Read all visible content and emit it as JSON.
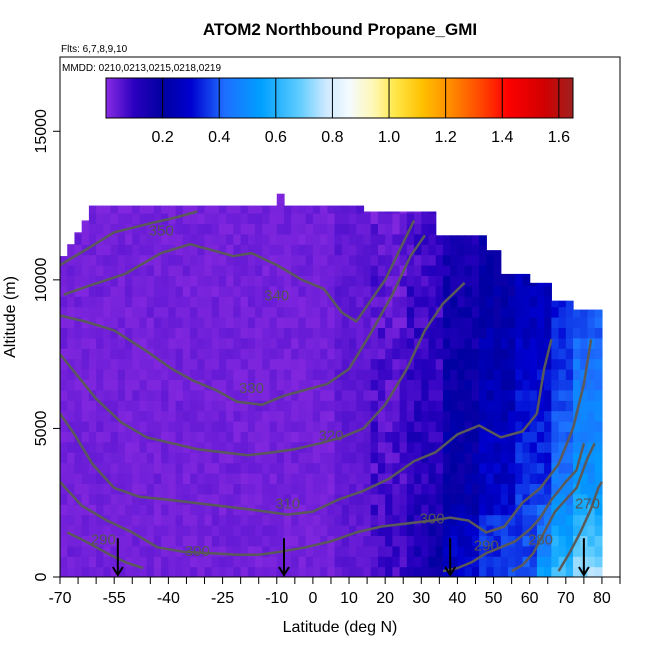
{
  "chart_data": {
    "type": "heatmap",
    "title": "ATOM2 Northbound Propane_GMI",
    "subtitle_flights": "Flts: 6,7,8,9,10",
    "subtitle_dates": "MMDD: 0210,0213,0215,0218,0219",
    "xlabel": "Latitude (deg N)",
    "ylabel": "Altitude (m)",
    "xlim": [
      -70,
      85
    ],
    "ylim": [
      0,
      17500
    ],
    "x_ticks": [
      {
        "value": -70,
        "label": "-70"
      },
      {
        "value": -55,
        "label": "-55"
      },
      {
        "value": -40,
        "label": "-40"
      },
      {
        "value": -25,
        "label": "-25"
      },
      {
        "value": -10,
        "label": "-10"
      },
      {
        "value": 0,
        "label": "0"
      },
      {
        "value": 10,
        "label": "10"
      },
      {
        "value": 20,
        "label": "20"
      },
      {
        "value": 30,
        "label": "30"
      },
      {
        "value": 40,
        "label": "40"
      },
      {
        "value": 50,
        "label": "50"
      },
      {
        "value": 60,
        "label": "60"
      },
      {
        "value": 70,
        "label": "70"
      },
      {
        "value": 80,
        "label": "80"
      }
    ],
    "x_minor_ticks": [
      -65,
      -60,
      -50,
      -45,
      -35,
      -30,
      -20,
      -15,
      -5,
      5,
      15,
      25,
      35,
      45,
      55,
      65,
      75,
      85
    ],
    "y_ticks": [
      {
        "value": 0,
        "label": "0"
      },
      {
        "value": 5000,
        "label": "5000"
      },
      {
        "value": 10000,
        "label": "10000"
      },
      {
        "value": 15000,
        "label": "15000"
      }
    ],
    "colorbar": {
      "min": 0.0,
      "max": 1.65,
      "ticks": [
        {
          "value": 0.2,
          "label": "0.2"
        },
        {
          "value": 0.4,
          "label": "0.4"
        },
        {
          "value": 0.6,
          "label": "0.6"
        },
        {
          "value": 0.8,
          "label": "0.8"
        },
        {
          "value": 1.0,
          "label": "1.0"
        },
        {
          "value": 1.2,
          "label": "1.2"
        },
        {
          "value": 1.4,
          "label": "1.4"
        },
        {
          "value": 1.6,
          "label": "1.6"
        }
      ],
      "stops": [
        {
          "value": 0.0,
          "color": "#8a2be2"
        },
        {
          "value": 0.1,
          "color": "#2a00c0"
        },
        {
          "value": 0.2,
          "color": "#0000a0"
        },
        {
          "value": 0.3,
          "color": "#0000d0"
        },
        {
          "value": 0.42,
          "color": "#1e6fff"
        },
        {
          "value": 0.55,
          "color": "#00a0ff"
        },
        {
          "value": 0.68,
          "color": "#5ccbff"
        },
        {
          "value": 0.78,
          "color": "#cfeaff"
        },
        {
          "value": 0.86,
          "color": "#f4fbff"
        },
        {
          "value": 0.95,
          "color": "#fff7b0"
        },
        {
          "value": 1.02,
          "color": "#ffe84a"
        },
        {
          "value": 1.12,
          "color": "#ffbf00"
        },
        {
          "value": 1.22,
          "color": "#ff8a00"
        },
        {
          "value": 1.32,
          "color": "#ff4a00"
        },
        {
          "value": 1.42,
          "color": "#ff0000"
        },
        {
          "value": 1.55,
          "color": "#d00000"
        },
        {
          "value": 1.65,
          "color": "#a02020"
        }
      ]
    },
    "field_zones": [
      {
        "lat_range": [
          -70,
          5
        ],
        "alt_max": 12500,
        "value": 0.01
      },
      {
        "lat_range": [
          5,
          15
        ],
        "alt_max": 12500,
        "value": 0.03
      },
      {
        "lat_range": [
          15,
          25
        ],
        "alt_max": 12000,
        "value": 0.06
      },
      {
        "lat_range": [
          25,
          35
        ],
        "alt_max": 11500,
        "value": 0.1
      },
      {
        "lat_range": [
          35,
          45
        ],
        "alt_max": 11000,
        "value": 0.18
      },
      {
        "lat_range": [
          45,
          55
        ],
        "alt_max": 10000,
        "value": 0.24
      },
      {
        "lat_range": [
          55,
          65
        ],
        "alt_max": 9500,
        "value": 0.3
      },
      {
        "lat_range": [
          65,
          72
        ],
        "alt_max": 9000,
        "value": 0.38
      },
      {
        "lat_range": [
          72,
          80
        ],
        "alt_max": 9000,
        "value": 0.45
      }
    ],
    "field_top_outline": [
      [
        -70,
        10800
      ],
      [
        -68,
        10800
      ],
      [
        -68,
        11200
      ],
      [
        -66,
        11200
      ],
      [
        -66,
        11600
      ],
      [
        -64,
        11600
      ],
      [
        -64,
        12000
      ],
      [
        -62,
        12000
      ],
      [
        -62,
        12500
      ],
      [
        -10,
        12500
      ],
      [
        -10,
        12900
      ],
      [
        -8,
        12900
      ],
      [
        -8,
        12500
      ],
      [
        14,
        12500
      ],
      [
        14,
        12300
      ],
      [
        34,
        12300
      ],
      [
        34,
        11500
      ],
      [
        48,
        11500
      ],
      [
        48,
        11000
      ],
      [
        52,
        11000
      ],
      [
        52,
        10200
      ],
      [
        60,
        10200
      ],
      [
        60,
        9900
      ],
      [
        66,
        9900
      ],
      [
        66,
        9300
      ],
      [
        72,
        9300
      ],
      [
        72,
        9000
      ],
      [
        80,
        9000
      ],
      [
        80,
        0
      ],
      [
        -70,
        0
      ]
    ],
    "contours": [
      {
        "label": "350",
        "label_at": [
          -42,
          11500
        ],
        "points": [
          [
            -70,
            10500
          ],
          [
            -63,
            11000
          ],
          [
            -55,
            11600
          ],
          [
            -45,
            11900
          ],
          [
            -38,
            12100
          ],
          [
            -32,
            12300
          ]
        ]
      },
      {
        "label": "340",
        "label_at": [
          -10,
          9300
        ],
        "points": [
          [
            -69,
            9500
          ],
          [
            -62,
            9800
          ],
          [
            -52,
            10200
          ],
          [
            -42,
            10900
          ],
          [
            -34,
            11200
          ],
          [
            -28,
            11000
          ],
          [
            -22,
            10800
          ],
          [
            -17,
            10900
          ],
          [
            -10,
            10500
          ],
          [
            -3,
            10000
          ],
          [
            3,
            9700
          ],
          [
            8,
            8900
          ],
          [
            12,
            8600
          ],
          [
            16,
            9300
          ],
          [
            20,
            10000
          ],
          [
            24,
            11000
          ],
          [
            28,
            12000
          ]
        ]
      },
      {
        "label": "330",
        "label_at": [
          -17,
          6200
        ],
        "points": [
          [
            -70,
            8800
          ],
          [
            -63,
            8600
          ],
          [
            -55,
            8300
          ],
          [
            -46,
            7600
          ],
          [
            -39,
            7000
          ],
          [
            -33,
            6600
          ],
          [
            -27,
            6300
          ],
          [
            -21,
            5900
          ],
          [
            -14,
            5800
          ],
          [
            -8,
            6100
          ],
          [
            -2,
            6300
          ],
          [
            4,
            6500
          ],
          [
            10,
            7000
          ],
          [
            16,
            8200
          ],
          [
            22,
            9500
          ],
          [
            27,
            10800
          ],
          [
            31,
            11500
          ]
        ]
      },
      {
        "label": "320",
        "label_at": [
          5,
          4600
        ],
        "points": [
          [
            -70,
            7500
          ],
          [
            -66,
            6900
          ],
          [
            -60,
            6000
          ],
          [
            -53,
            5200
          ],
          [
            -46,
            4700
          ],
          [
            -39,
            4500
          ],
          [
            -32,
            4300
          ],
          [
            -25,
            4200
          ],
          [
            -18,
            4100
          ],
          [
            -11,
            4200
          ],
          [
            -5,
            4300
          ],
          [
            2,
            4500
          ],
          [
            8,
            4700
          ],
          [
            14,
            5000
          ],
          [
            20,
            5800
          ],
          [
            26,
            7000
          ],
          [
            31,
            8300
          ],
          [
            36,
            9200
          ],
          [
            42,
            9900
          ]
        ]
      },
      {
        "label": "310",
        "label_at": [
          -7,
          2300
        ],
        "points": [
          [
            -70,
            5500
          ],
          [
            -66,
            4800
          ],
          [
            -61,
            3800
          ],
          [
            -55,
            3000
          ],
          [
            -48,
            2700
          ],
          [
            -40,
            2600
          ],
          [
            -33,
            2500
          ],
          [
            -26,
            2400
          ],
          [
            -19,
            2300
          ],
          [
            -13,
            2200
          ],
          [
            -7,
            2100
          ],
          [
            0,
            2200
          ],
          [
            7,
            2600
          ],
          [
            14,
            2900
          ],
          [
            21,
            3300
          ],
          [
            28,
            3900
          ],
          [
            34,
            4200
          ],
          [
            40,
            4800
          ],
          [
            46,
            5100
          ],
          [
            52,
            4700
          ],
          [
            58,
            4900
          ],
          [
            62,
            5500
          ],
          [
            64,
            7000
          ],
          [
            66,
            8000
          ]
        ]
      },
      {
        "label": "300",
        "label_at": [
          -32,
          700
        ],
        "points": [
          [
            -70,
            3200
          ],
          [
            -64,
            2400
          ],
          [
            -57,
            1900
          ],
          [
            -50,
            1500
          ],
          [
            -43,
            1000
          ],
          [
            -36,
            850
          ],
          [
            -28,
            800
          ],
          [
            -21,
            750
          ],
          [
            -15,
            750
          ],
          [
            -9,
            850
          ],
          [
            -2,
            1000
          ],
          [
            5,
            1200
          ],
          [
            12,
            1500
          ],
          [
            19,
            1700
          ],
          [
            26,
            1800
          ],
          [
            33,
            1900
          ],
          [
            38,
            2000
          ],
          [
            43,
            1900
          ],
          [
            48,
            1500
          ],
          [
            53,
            1700
          ],
          [
            58,
            2500
          ],
          [
            63,
            3000
          ],
          [
            68,
            3800
          ],
          [
            72,
            5000
          ],
          [
            75,
            6500
          ],
          [
            77,
            8000
          ]
        ]
      },
      {
        "label": "290",
        "label_at": [
          -58,
          1100
        ],
        "points": [
          [
            -68,
            1500
          ],
          [
            -63,
            1200
          ],
          [
            -57,
            800
          ],
          [
            -52,
            500
          ],
          [
            -47,
            300
          ]
        ]
      },
      {
        "label": "300",
        "label_at": [
          33,
          1800
        ],
        "points": []
      },
      {
        "label": "290",
        "label_at": [
          48,
          900
        ],
        "points": [
          [
            36,
            200
          ],
          [
            40,
            300
          ],
          [
            44,
            500
          ],
          [
            48,
            800
          ],
          [
            52,
            1000
          ],
          [
            56,
            1200
          ],
          [
            60,
            1600
          ],
          [
            63,
            2000
          ],
          [
            66,
            2600
          ],
          [
            70,
            3200
          ],
          [
            73,
            3600
          ],
          [
            75,
            4500
          ]
        ]
      },
      {
        "label": "280",
        "label_at": [
          63,
          1100
        ],
        "points": [
          [
            55,
            200
          ],
          [
            58,
            400
          ],
          [
            61,
            800
          ],
          [
            64,
            1500
          ],
          [
            67,
            2200
          ],
          [
            70,
            2600
          ],
          [
            73,
            3000
          ],
          [
            76,
            4000
          ],
          [
            78,
            4500
          ]
        ]
      },
      {
        "label": "270",
        "label_at": [
          76,
          2300
        ],
        "points": [
          [
            68,
            200
          ],
          [
            71,
            800
          ],
          [
            74,
            1500
          ],
          [
            77,
            2300
          ],
          [
            79,
            3000
          ],
          [
            80,
            3200
          ]
        ]
      }
    ],
    "flight_markers": [
      {
        "lat": -54,
        "alt_top": 700
      },
      {
        "lat": -8,
        "alt_top": 700
      },
      {
        "lat": 38,
        "alt_top": 700
      },
      {
        "lat": 75,
        "alt_top": 700
      }
    ]
  }
}
